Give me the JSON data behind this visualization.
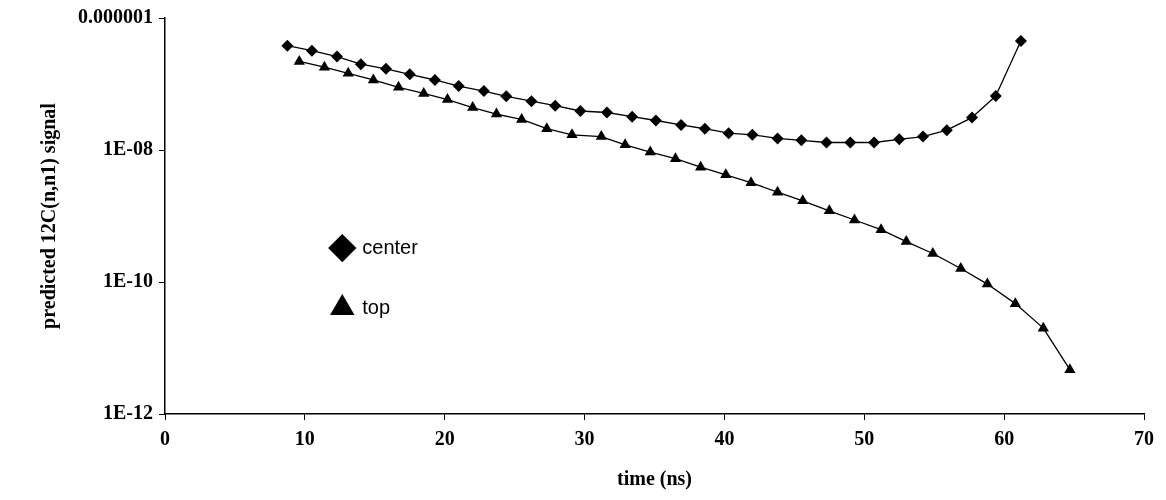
{
  "chart_data": {
    "type": "line",
    "xlabel": "time (ns)",
    "ylabel": "predicted 12C(n,n1) signal",
    "log": "y",
    "grid": false,
    "legend": "left",
    "line_style": "solid",
    "xlim": [
      0,
      70
    ],
    "xticks": [
      0,
      10,
      20,
      30,
      40,
      50,
      60,
      70
    ],
    "ylim": [
      1e-12,
      1e-06
    ],
    "yticks": [
      {
        "value": 1e-12,
        "label": "1E-12"
      },
      {
        "value": 1e-10,
        "label": "1E-10"
      },
      {
        "value": 1e-08,
        "label": "1E-08"
      },
      {
        "value": 1e-06,
        "label": "0.000001"
      }
    ],
    "series": [
      {
        "name": "center",
        "color": "#000000",
        "marker": "diamond",
        "x": [
          8.75,
          10.5,
          12.3,
          14.0,
          15.8,
          17.5,
          19.3,
          21.0,
          22.8,
          24.4,
          26.2,
          27.9,
          29.7,
          31.6,
          33.4,
          35.1,
          36.9,
          38.6,
          40.3,
          42.0,
          43.8,
          45.5,
          47.3,
          49.0,
          50.7,
          52.5,
          54.2,
          55.9,
          57.7,
          59.4,
          61.2
        ],
        "values": [
          3.8e-07,
          3.2e-07,
          2.6e-07,
          2e-07,
          1.7e-07,
          1.4e-07,
          1.15e-07,
          9.3e-08,
          7.8e-08,
          6.5e-08,
          5.5e-08,
          4.7e-08,
          3.9e-08,
          3.7e-08,
          3.2e-08,
          2.8e-08,
          2.4e-08,
          2.1e-08,
          1.8e-08,
          1.7e-08,
          1.5e-08,
          1.4e-08,
          1.3e-08,
          1.3e-08,
          1.3e-08,
          1.45e-08,
          1.6e-08,
          2e-08,
          3.1e-08,
          6.6e-08,
          4.5e-07
        ]
      },
      {
        "name": "top",
        "color": "#000000",
        "marker": "triangle",
        "x": [
          9.6,
          11.4,
          13.1,
          14.9,
          16.7,
          18.5,
          20.2,
          22.0,
          23.7,
          25.5,
          27.3,
          29.1,
          31.2,
          32.9,
          34.7,
          36.5,
          38.3,
          40.1,
          41.9,
          43.8,
          45.6,
          47.5,
          49.3,
          51.2,
          53.0,
          54.9,
          56.9,
          58.8,
          60.8,
          62.8,
          64.7
        ],
        "values": [
          2.2e-07,
          1.8e-07,
          1.45e-07,
          1.15e-07,
          8.9e-08,
          7.2e-08,
          5.8e-08,
          4.4e-08,
          3.5e-08,
          2.9e-08,
          2.1e-08,
          1.7e-08,
          1.6e-08,
          1.2e-08,
          9.3e-09,
          7.4e-09,
          5.5e-09,
          4.2e-09,
          3.2e-09,
          2.3e-09,
          1.7e-09,
          1.2e-09,
          8.7e-10,
          6.2e-10,
          4.1e-10,
          2.7e-10,
          1.6e-10,
          9.3e-11,
          4.7e-11,
          2e-11,
          4.7e-12
        ]
      }
    ]
  }
}
